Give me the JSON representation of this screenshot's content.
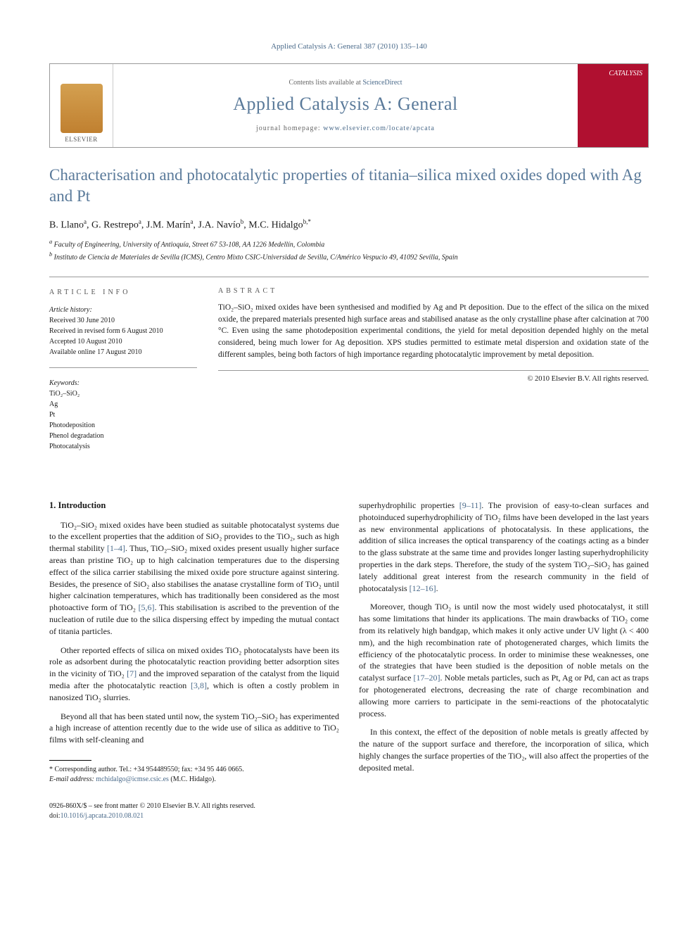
{
  "journal_ref": "Applied Catalysis A: General 387 (2010) 135–140",
  "header": {
    "publisher_logo_text": "ELSEVIER",
    "contents_prefix": "Contents lists available at ",
    "contents_link": "ScienceDirect",
    "journal_name": "Applied Catalysis A: General",
    "homepage_prefix": "journal homepage: ",
    "homepage_url": "www.elsevier.com/locate/apcata",
    "cover_badge": "CATALYSIS"
  },
  "title": "Characterisation and photocatalytic properties of titania–silica mixed oxides doped with Ag and Pt",
  "authors_html": "B. Llano<sup>a</sup>, G. Restrepo<sup>a</sup>, J.M. Marín<sup>a</sup>, J.A. Navío<sup>b</sup>, M.C. Hidalgo<sup>b,*</sup>",
  "affiliations": {
    "a": "Faculty of Engineering, University of Antioquía, Street 67 53-108, AA 1226 Medellín, Colombia",
    "b": "Instituto de Ciencia de Materiales de Sevilla (ICMS), Centro Mixto CSIC-Universidad de Sevilla, C/Américo Vespucio 49, 41092 Sevilla, Spain"
  },
  "article_info": {
    "heading": "ARTICLE INFO",
    "history_label": "Article history:",
    "received": "Received 30 June 2010",
    "revised": "Received in revised form 6 August 2010",
    "accepted": "Accepted 10 August 2010",
    "online": "Available online 17 August 2010",
    "keywords_label": "Keywords:",
    "keywords": [
      "TiO₂–SiO₂",
      "Ag",
      "Pt",
      "Photodeposition",
      "Phenol degradation",
      "Photocatalysis"
    ]
  },
  "abstract": {
    "heading": "ABSTRACT",
    "text": "TiO₂–SiO₂ mixed oxides have been synthesised and modified by Ag and Pt deposition. Due to the effect of the silica on the mixed oxide, the prepared materials presented high surface areas and stabilised anatase as the only crystalline phase after calcination at 700 °C. Even using the same photodeposition experimental conditions, the yield for metal deposition depended highly on the metal considered, being much lower for Ag deposition. XPS studies permitted to estimate metal dispersion and oxidation state of the different samples, being both factors of high importance regarding photocatalytic improvement by metal deposition.",
    "copyright": "© 2010 Elsevier B.V. All rights reserved."
  },
  "body": {
    "section_number": "1.",
    "section_title": "Introduction",
    "p1": "TiO₂–SiO₂ mixed oxides have been studied as suitable photocatalyst systems due to the excellent properties that the addition of SiO₂ provides to the TiO₂, such as high thermal stability [1–4]. Thus, TiO₂–SiO₂ mixed oxides present usually higher surface areas than pristine TiO₂ up to high calcination temperatures due to the dispersing effect of the silica carrier stabilising the mixed oxide pore structure against sintering. Besides, the presence of SiO₂ also stabilises the anatase crystalline form of TiO₂ until higher calcination temperatures, which has traditionally been considered as the most photoactive form of TiO₂ [5,6]. This stabilisation is ascribed to the prevention of the nucleation of rutile due to the silica dispersing effect by impeding the mutual contact of titania particles.",
    "p2": "Other reported effects of silica on mixed oxides TiO₂ photocatalysts have been its role as adsorbent during the photocatalytic reaction providing better adsorption sites in the vicinity of TiO₂ [7] and the improved separation of the catalyst from the liquid media after the photocatalytic reaction [3,8], which is often a costly problem in nanosized TiO₂ slurries.",
    "p3": "Beyond all that has been stated until now, the system TiO₂–SiO₂ has experimented a high increase of attention recently due to the wide use of silica as additive to TiO₂ films with self-cleaning and",
    "p4": "superhydrophilic properties [9–11]. The provision of easy-to-clean surfaces and photoinduced superhydrophilicity of TiO₂ films have been developed in the last years as new environmental applications of photocatalysis. In these applications, the addition of silica increases the optical transparency of the coatings acting as a binder to the glass substrate at the same time and provides longer lasting superhydrophilicity properties in the dark steps. Therefore, the study of the system TiO₂–SiO₂ has gained lately additional great interest from the research community in the field of photocatalysis [12–16].",
    "p5": "Moreover, though TiO₂ is until now the most widely used photocatalyst, it still has some limitations that hinder its applications. The main drawbacks of TiO₂ come from its relatively high bandgap, which makes it only active under UV light (λ < 400 nm), and the high recombination rate of photogenerated charges, which limits the efficiency of the photocatalytic process. In order to minimise these weaknesses, one of the strategies that have been studied is the deposition of noble metals on the catalyst surface [17–20]. Noble metals particles, such as Pt, Ag or Pd, can act as traps for photogenerated electrons, decreasing the rate of charge recombination and allowing more carriers to participate in the semi-reactions of the photocatalytic process.",
    "p6": "In this context, the effect of the deposition of noble metals is greatly affected by the nature of the support surface and therefore, the incorporation of silica, which highly changes the surface properties of the TiO₂, will also affect the properties of the deposited metal."
  },
  "footnote": {
    "corr": "* Corresponding author. Tel.: +34 954489550; fax: +34 95 446 0665.",
    "email_label": "E-mail address:",
    "email": "mchidalgo@icmse.csic.es",
    "email_person": "(M.C. Hidalgo)."
  },
  "footer": {
    "issn": "0926-860X/$ – see front matter © 2010 Elsevier B.V. All rights reserved.",
    "doi_label": "doi:",
    "doi": "10.1016/j.apcata.2010.08.021"
  },
  "colors": {
    "link": "#4a6a8a",
    "cover": "#b01030",
    "title": "#5a7a9a"
  }
}
